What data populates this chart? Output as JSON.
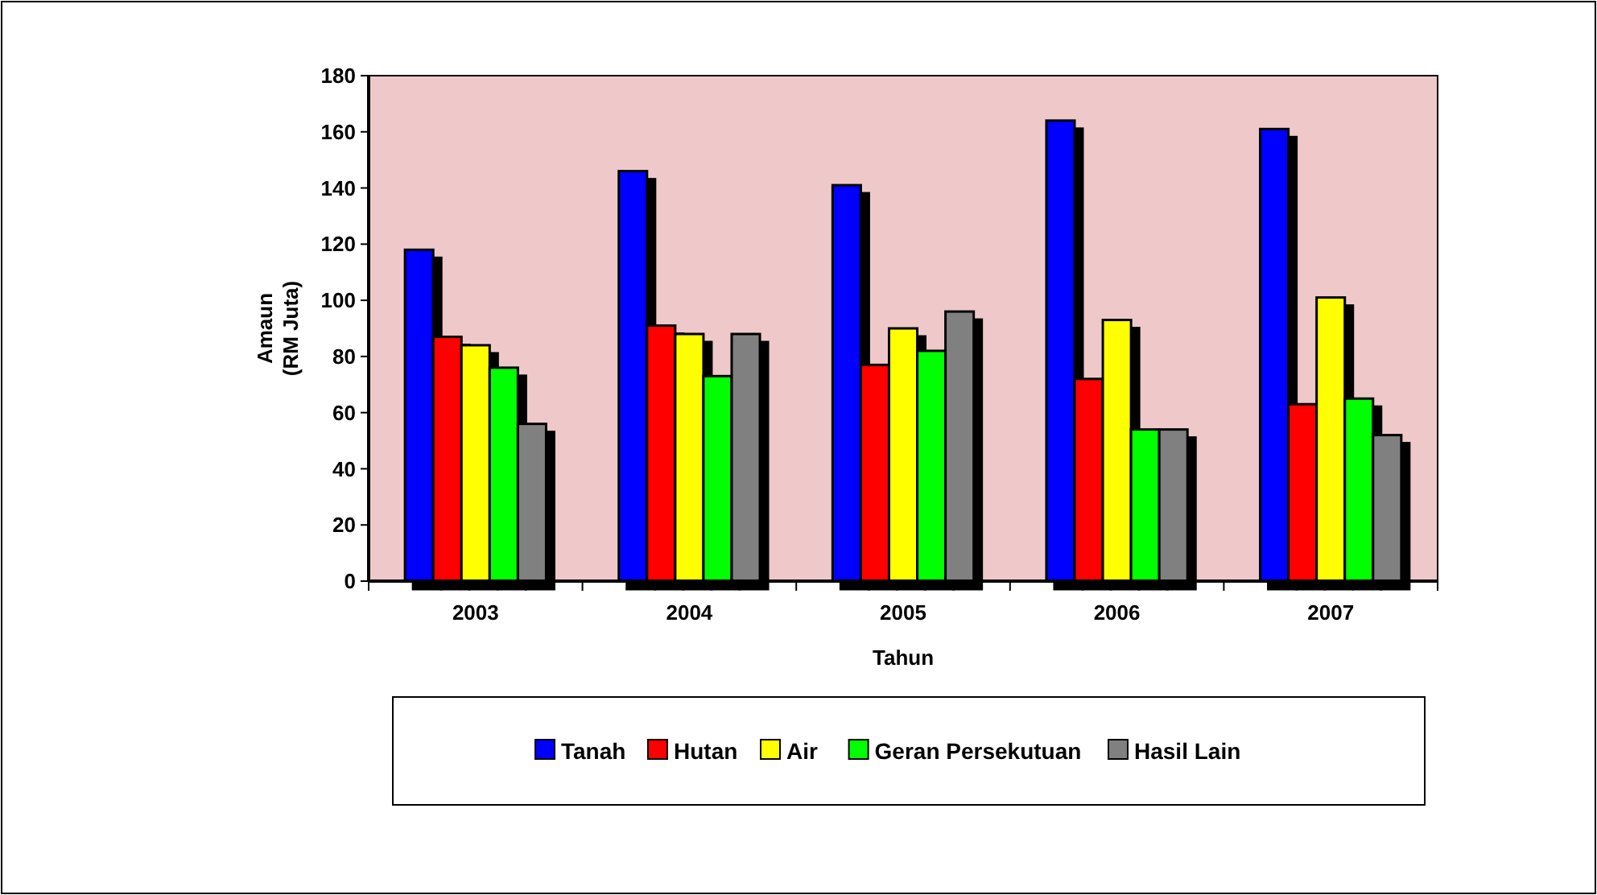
{
  "chart_data": {
    "type": "bar",
    "xlabel": "Tahun",
    "ylabel": "Amaun\n(RM Juta)",
    "categories": [
      "2003",
      "2004",
      "2005",
      "2006",
      "2007"
    ],
    "series": [
      {
        "name": "Tanah",
        "color": "#0000ff",
        "values": [
          118,
          146,
          141,
          164,
          161
        ]
      },
      {
        "name": "Hutan",
        "color": "#ff0000",
        "values": [
          87,
          91,
          77,
          72,
          63
        ]
      },
      {
        "name": "Air",
        "color": "#ffff00",
        "values": [
          84,
          88,
          90,
          93,
          101
        ]
      },
      {
        "name": "Geran Persekutuan",
        "color": "#00ff00",
        "values": [
          76,
          73,
          82,
          54,
          65
        ]
      },
      {
        "name": "Hasil Lain",
        "color": "#808080",
        "values": [
          56,
          88,
          96,
          54,
          52
        ]
      }
    ],
    "ylim": [
      0,
      180
    ],
    "yticks": [
      0,
      20,
      40,
      60,
      80,
      100,
      120,
      140,
      160,
      180
    ],
    "grid": false,
    "legend": "bottom"
  }
}
